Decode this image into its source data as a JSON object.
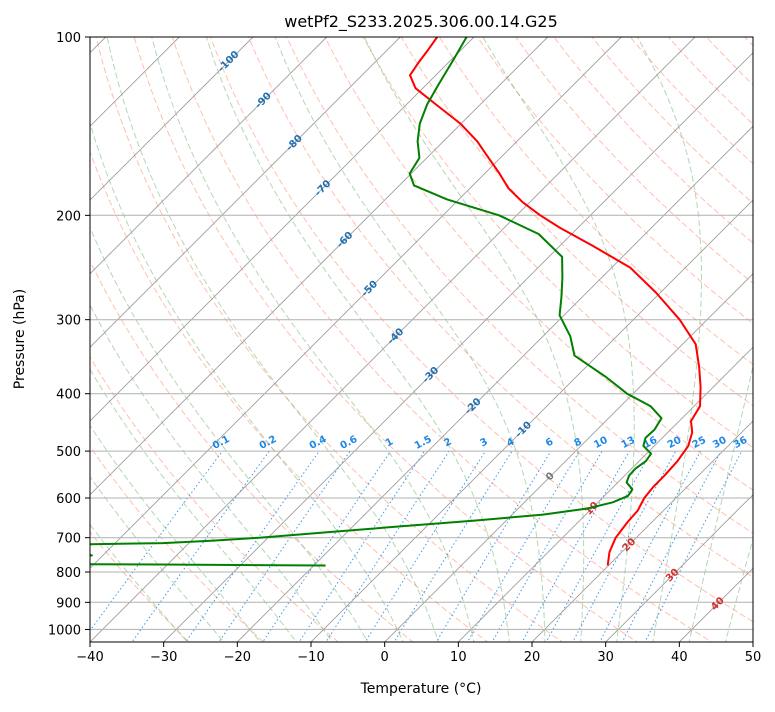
{
  "chart_data": {
    "type": "line",
    "title": "wetPf2_S233.2025.306.00.14.G25",
    "xlabel": "Temperature (°C)",
    "ylabel": "Pressure (hPa)",
    "xlim": [
      -40,
      50
    ],
    "ylim": [
      1050,
      100
    ],
    "y_scale": "log",
    "x_ticks": [
      -40,
      -30,
      -20,
      -10,
      0,
      10,
      20,
      30,
      40,
      50
    ],
    "x_tick_labels": [
      "−40",
      "−30",
      "−20",
      "−10",
      "0",
      "10",
      "20",
      "30",
      "40",
      "50"
    ],
    "y_ticks": [
      1000,
      900,
      800,
      700,
      600,
      500,
      400,
      300,
      200,
      100
    ],
    "y_tick_labels": [
      "1000",
      "900",
      "800",
      "700",
      "600",
      "500",
      "400",
      "300",
      "200",
      "100"
    ],
    "grid": true,
    "skew": 1,
    "isotherm_labels": [
      {
        "text": "-100",
        "t": -100,
        "p": 110
      },
      {
        "text": "-90",
        "t": -90,
        "p": 128
      },
      {
        "text": "-80",
        "t": -80,
        "p": 151
      },
      {
        "text": "-70",
        "t": -70,
        "p": 180
      },
      {
        "text": "-60",
        "t": -60,
        "p": 220
      },
      {
        "text": "-50",
        "t": -50,
        "p": 266
      },
      {
        "text": "-40",
        "t": -40,
        "p": 320
      },
      {
        "text": "-30",
        "t": -30,
        "p": 372
      },
      {
        "text": "-20",
        "t": -20,
        "p": 420
      },
      {
        "text": "-10",
        "t": -10,
        "p": 460
      },
      {
        "text": "0",
        "t": 0,
        "p": 552
      },
      {
        "text": "10",
        "t": 10,
        "p": 625
      },
      {
        "text": "20",
        "t": 20,
        "p": 720
      },
      {
        "text": "30",
        "t": 30,
        "p": 810
      },
      {
        "text": "40",
        "t": 40,
        "p": 905
      }
    ],
    "mixing_ratio_labels": [
      "0.1",
      "0.2",
      "0.4",
      "0.6",
      "1",
      "1.5",
      "2",
      "3",
      "4",
      "6",
      "8",
      "10",
      "13",
      "16",
      "20",
      "25",
      "30",
      "36"
    ],
    "mixing_ratio_values": [
      0.1,
      0.2,
      0.4,
      0.6,
      1,
      1.5,
      2,
      3,
      4,
      6,
      8,
      10,
      13,
      16,
      20,
      25,
      30,
      36
    ],
    "mixing_ratio_label_pressure": 500,
    "series": [
      {
        "color": "#ff0000",
        "points": [
          [
            19.9,
            780
          ],
          [
            18.3,
            740
          ],
          [
            17.2,
            700
          ],
          [
            16.7,
            660
          ],
          [
            16.5,
            630
          ],
          [
            15.7,
            600
          ],
          [
            15.4,
            575
          ],
          [
            15.4,
            550
          ],
          [
            15.2,
            520
          ],
          [
            14.6,
            490
          ],
          [
            13.3,
            465
          ],
          [
            11.6,
            445
          ],
          [
            10.8,
            420
          ],
          [
            8.3,
            390
          ],
          [
            5.3,
            360
          ],
          [
            1.8,
            330
          ],
          [
            -3.7,
            300
          ],
          [
            -10.6,
            270
          ],
          [
            -17.5,
            245
          ],
          [
            -25.6,
            225
          ],
          [
            -32.4,
            210
          ],
          [
            -36.8,
            200
          ],
          [
            -41.0,
            190
          ],
          [
            -44.8,
            180
          ],
          [
            -48.0,
            170
          ],
          [
            -51.6,
            160
          ],
          [
            -55.4,
            150
          ],
          [
            -60.1,
            140
          ],
          [
            -66.0,
            130
          ],
          [
            -71.0,
            122
          ],
          [
            -73.5,
            116
          ],
          [
            -74.1,
            110
          ],
          [
            -74.5,
            105
          ],
          [
            -75.0,
            100
          ]
        ]
      },
      {
        "color": "#008000",
        "points": [
          [
            -18.4,
            780
          ],
          [
            -41.0,
            777
          ],
          [
            -60.0,
            775
          ],
          [
            -58.0,
            765
          ],
          [
            -51.5,
            750
          ],
          [
            -60.0,
            735
          ],
          [
            -64.0,
            725
          ],
          [
            -59.0,
            720
          ],
          [
            -43.5,
            715
          ],
          [
            -37.0,
            708
          ],
          [
            -31.2,
            700
          ],
          [
            -22.5,
            685
          ],
          [
            -13.6,
            670
          ],
          [
            -4.3,
            655
          ],
          [
            4.2,
            640
          ],
          [
            9.4,
            625
          ],
          [
            12.0,
            610
          ],
          [
            13.2,
            595
          ],
          [
            12.9,
            580
          ],
          [
            11.2,
            565
          ],
          [
            10.6,
            550
          ],
          [
            10.5,
            535
          ],
          [
            10.9,
            520
          ],
          [
            10.6,
            505
          ],
          [
            8.5,
            490
          ],
          [
            7.7,
            475
          ],
          [
            7.8,
            460
          ],
          [
            7.2,
            440
          ],
          [
            4.1,
            420
          ],
          [
            -0.8,
            400
          ],
          [
            -5.9,
            375
          ],
          [
            -13.1,
            345
          ],
          [
            -16.3,
            320
          ],
          [
            -20.6,
            295
          ],
          [
            -22.8,
            275
          ],
          [
            -25.3,
            255
          ],
          [
            -28.2,
            235
          ],
          [
            -34.5,
            215
          ],
          [
            -42.4,
            200
          ],
          [
            -51.6,
            188
          ],
          [
            -58.0,
            178
          ],
          [
            -60.2,
            170
          ],
          [
            -61.0,
            160
          ],
          [
            -63.5,
            150
          ],
          [
            -65.6,
            140
          ],
          [
            -67.2,
            130
          ],
          [
            -68.4,
            120
          ],
          [
            -69.6,
            110
          ],
          [
            -71.0,
            100
          ]
        ]
      }
    ]
  }
}
